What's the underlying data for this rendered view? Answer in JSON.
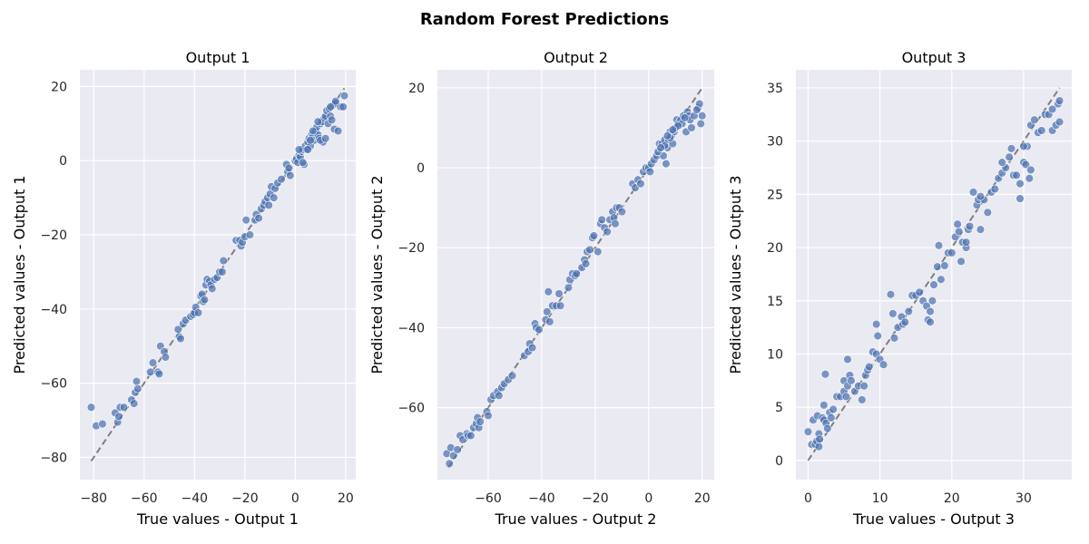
{
  "figure_title": "Random Forest Predictions",
  "colors": {
    "panel_bg": "#eaeaf2",
    "grid": "#ffffff",
    "point": "#4c72b0",
    "identity_line": "#7f7f7f"
  },
  "chart_data": [
    {
      "type": "scatter",
      "title": "Output 1",
      "xlabel": "True values - Output 1",
      "ylabel": "Predicted values - Output 1",
      "xlim": [
        -85.5,
        24
      ],
      "ylim": [
        -86,
        24.5
      ],
      "xticks": [
        -80,
        -60,
        -40,
        -20,
        0,
        20
      ],
      "yticks": [
        -80,
        -60,
        -40,
        -20,
        0,
        20
      ],
      "xtick_labels": [
        "−80",
        "−60",
        "−40",
        "−20",
        "0",
        "20"
      ],
      "ytick_labels": [
        "−80",
        "−60",
        "−40",
        "−20",
        "0",
        "20"
      ],
      "grid": true,
      "identity_line": {
        "from": -81,
        "to": 19.5,
        "style": "dashed"
      },
      "points": [
        [
          -81,
          -66.5
        ],
        [
          -79,
          -71.5
        ],
        [
          -76.5,
          -71
        ],
        [
          -71.5,
          -68
        ],
        [
          -70.5,
          -70.5
        ],
        [
          -70,
          -69
        ],
        [
          -69.5,
          -66.5
        ],
        [
          -68,
          -66.5
        ],
        [
          -65,
          -64.5
        ],
        [
          -64,
          -65.5
        ],
        [
          -63.5,
          -62.5
        ],
        [
          -62.5,
          -61.5
        ],
        [
          -63,
          -59.5
        ],
        [
          -57.5,
          -57
        ],
        [
          -56.5,
          -54.5
        ],
        [
          -54.5,
          -57
        ],
        [
          -54,
          -57.5
        ],
        [
          -53.5,
          -50
        ],
        [
          -52,
          -51.5
        ],
        [
          -51.5,
          -53
        ],
        [
          -46.5,
          -45.5
        ],
        [
          -46,
          -47.5
        ],
        [
          -45.5,
          -48
        ],
        [
          -44.5,
          -44
        ],
        [
          -43.5,
          -43
        ],
        [
          -41.5,
          -42
        ],
        [
          -40.5,
          -41.5
        ],
        [
          -40,
          -41
        ],
        [
          -39.5,
          -39.5
        ],
        [
          -38.5,
          -41
        ],
        [
          -37.5,
          -36.5
        ],
        [
          -37,
          -36
        ],
        [
          -36.5,
          -38
        ],
        [
          -36,
          -37.5
        ],
        [
          -35.5,
          -33.5
        ],
        [
          -35,
          -32
        ],
        [
          -34,
          -32.5
        ],
        [
          -33.5,
          -33.5
        ],
        [
          -33,
          -34.5
        ],
        [
          -32,
          -32
        ],
        [
          -31,
          -31.5
        ],
        [
          -30,
          -30
        ],
        [
          -29,
          -30
        ],
        [
          -28.5,
          -27
        ],
        [
          -23.5,
          -21.5
        ],
        [
          -22,
          -21.5
        ],
        [
          -21.5,
          -23
        ],
        [
          -21,
          -22
        ],
        [
          -20,
          -20.5
        ],
        [
          -19.5,
          -16
        ],
        [
          -18,
          -20
        ],
        [
          -16,
          -16
        ],
        [
          -15.5,
          -14.5
        ],
        [
          -14.5,
          -15.5
        ],
        [
          -13.5,
          -13
        ],
        [
          -12.5,
          -12
        ],
        [
          -12,
          -11
        ],
        [
          -11,
          -10
        ],
        [
          -10.5,
          -12
        ],
        [
          -10,
          -9
        ],
        [
          -9.5,
          -7
        ],
        [
          -8.5,
          -10
        ],
        [
          -8,
          -7.5
        ],
        [
          -7,
          -6
        ],
        [
          -5.5,
          -5
        ],
        [
          -3.5,
          -1
        ],
        [
          -3,
          -3
        ],
        [
          -2.5,
          -2
        ],
        [
          -2,
          -4
        ],
        [
          0,
          0
        ],
        [
          0.5,
          0.5
        ],
        [
          1,
          -0.5
        ],
        [
          1.5,
          1.5
        ],
        [
          2,
          1
        ],
        [
          2.5,
          2.5
        ],
        [
          3,
          3
        ],
        [
          3.5,
          -1
        ],
        [
          4,
          4
        ],
        [
          4.5,
          3
        ],
        [
          5,
          5
        ],
        [
          5.5,
          6
        ],
        [
          6,
          4
        ],
        [
          6.5,
          7
        ],
        [
          7,
          6.5
        ],
        [
          7.5,
          5.5
        ],
        [
          8,
          8
        ],
        [
          8.5,
          9
        ],
        [
          9,
          7
        ],
        [
          9.5,
          6
        ],
        [
          10,
          10
        ],
        [
          10.5,
          10.5
        ],
        [
          11,
          5
        ],
        [
          11.5,
          11.5
        ],
        [
          12,
          12
        ],
        [
          12.5,
          13.5
        ],
        [
          13,
          10
        ],
        [
          13.5,
          14
        ],
        [
          14,
          12
        ],
        [
          14.5,
          11
        ],
        [
          15,
          15
        ],
        [
          15.5,
          8.5
        ],
        [
          16,
          15.5
        ],
        [
          17,
          8
        ],
        [
          18,
          14.5
        ],
        [
          19,
          14.5
        ],
        [
          19.5,
          17.5
        ],
        [
          5,
          3
        ],
        [
          3,
          -0.5
        ],
        [
          1.5,
          3
        ],
        [
          7,
          8
        ],
        [
          10,
          5.5
        ],
        [
          12,
          6
        ],
        [
          9,
          10.5
        ],
        [
          16,
          16
        ],
        [
          14,
          14.5
        ],
        [
          6,
          5.5
        ]
      ]
    },
    {
      "type": "scatter",
      "title": "Output 2",
      "xlabel": "True values - Output 2",
      "ylabel": "Predicted values - Output 2",
      "xlim": [
        -79,
        24.5
      ],
      "ylim": [
        -78,
        24.5
      ],
      "xticks": [
        -60,
        -40,
        -20,
        0,
        20
      ],
      "yticks": [
        -60,
        -40,
        -20,
        0,
        20
      ],
      "xtick_labels": [
        "−60",
        "−40",
        "−20",
        "0",
        "20"
      ],
      "ytick_labels": [
        "−60",
        "−40",
        "−20",
        "0",
        "20"
      ],
      "grid": true,
      "identity_line": {
        "from": -75,
        "to": 20,
        "style": "dashed"
      },
      "points": [
        [
          -75.5,
          -71.5
        ],
        [
          -74.5,
          -74
        ],
        [
          -74,
          -70
        ],
        [
          -73,
          -72
        ],
        [
          -71.5,
          -70.5
        ],
        [
          -70.5,
          -67
        ],
        [
          -69.5,
          -68
        ],
        [
          -68,
          -66.5
        ],
        [
          -67.5,
          -67
        ],
        [
          -66.5,
          -67
        ],
        [
          -65.5,
          -65
        ],
        [
          -64.5,
          -64
        ],
        [
          -64,
          -62.5
        ],
        [
          -63.5,
          -65
        ],
        [
          -63,
          -63.5
        ],
        [
          -60.5,
          -61
        ],
        [
          -60,
          -62
        ],
        [
          -59,
          -58
        ],
        [
          -58,
          -57
        ],
        [
          -56.5,
          -56
        ],
        [
          -56,
          -57
        ],
        [
          -55,
          -55
        ],
        [
          -54,
          -54
        ],
        [
          -52.5,
          -53
        ],
        [
          -51,
          -52
        ],
        [
          -46.5,
          -47
        ],
        [
          -45,
          -46
        ],
        [
          -44.5,
          -44
        ],
        [
          -43.5,
          -45
        ],
        [
          -42.5,
          -39
        ],
        [
          -42,
          -40
        ],
        [
          -41,
          -40.5
        ],
        [
          -38.5,
          -38
        ],
        [
          -38,
          -36
        ],
        [
          -37.5,
          -31
        ],
        [
          -37,
          -38.5
        ],
        [
          -36,
          -34.5
        ],
        [
          -34.5,
          -34.5
        ],
        [
          -33.5,
          -31.5
        ],
        [
          -33,
          -34.5
        ],
        [
          -30,
          -30
        ],
        [
          -29.5,
          -28
        ],
        [
          -28.5,
          -26.5
        ],
        [
          -27.5,
          -27
        ],
        [
          -27,
          -26.5
        ],
        [
          -25,
          -25
        ],
        [
          -24,
          -23
        ],
        [
          -23.5,
          -24
        ],
        [
          -23,
          -21
        ],
        [
          -22,
          -20.5
        ],
        [
          -21,
          -17.5
        ],
        [
          -20.5,
          -17
        ],
        [
          -19,
          -21
        ],
        [
          -18,
          -14
        ],
        [
          -17.5,
          -13
        ],
        [
          -16.5,
          -15
        ],
        [
          -15.5,
          -16
        ],
        [
          -14.5,
          -13
        ],
        [
          -13.5,
          -11
        ],
        [
          -13,
          -12.5
        ],
        [
          -12.5,
          -14
        ],
        [
          -12,
          -10
        ],
        [
          -11,
          -10
        ],
        [
          -10,
          -11
        ],
        [
          -6,
          -4
        ],
        [
          -5,
          -5
        ],
        [
          -4,
          -3
        ],
        [
          -3,
          -4
        ],
        [
          -2,
          -1
        ],
        [
          -1,
          0
        ],
        [
          0,
          0
        ],
        [
          0.5,
          -1
        ],
        [
          1,
          1
        ],
        [
          2,
          2
        ],
        [
          3,
          3
        ],
        [
          4,
          6
        ],
        [
          5,
          6
        ],
        [
          5.5,
          3
        ],
        [
          6,
          7
        ],
        [
          6.5,
          1
        ],
        [
          7,
          5
        ],
        [
          7.5,
          7
        ],
        [
          8,
          9
        ],
        [
          8.5,
          8
        ],
        [
          9,
          6
        ],
        [
          9.5,
          9
        ],
        [
          10,
          10
        ],
        [
          10.5,
          12
        ],
        [
          11,
          11
        ],
        [
          12,
          12
        ],
        [
          12.5,
          11
        ],
        [
          13,
          13
        ],
        [
          14,
          9
        ],
        [
          14.5,
          14
        ],
        [
          15,
          13
        ],
        [
          15.5,
          12
        ],
        [
          16,
          10
        ],
        [
          17,
          13
        ],
        [
          18.5,
          15
        ],
        [
          19,
          16
        ],
        [
          19.5,
          11
        ],
        [
          20,
          13
        ],
        [
          3.5,
          4
        ],
        [
          6,
          5.5
        ],
        [
          8,
          7.5
        ],
        [
          11,
          10.5
        ],
        [
          13.5,
          12.5
        ],
        [
          18,
          14.5
        ],
        [
          7,
          8
        ],
        [
          9,
          9.5
        ],
        [
          4.5,
          5
        ]
      ]
    },
    {
      "type": "scatter",
      "title": "Output 3",
      "xlabel": "True values - Output 3",
      "ylabel": "Predicted values - Output 3",
      "xlim": [
        -1.7,
        36.7
      ],
      "ylim": [
        -1.8,
        36.7
      ],
      "xticks": [
        0,
        10,
        20,
        30
      ],
      "yticks": [
        0,
        5,
        10,
        15,
        20,
        25,
        30,
        35
      ],
      "xtick_labels": [
        "0",
        "10",
        "20",
        "30"
      ],
      "ytick_labels": [
        "0",
        "5",
        "10",
        "15",
        "20",
        "25",
        "30",
        "35"
      ],
      "grid": true,
      "identity_line": {
        "from": 0,
        "to": 35,
        "style": "dashed"
      },
      "points": [
        [
          0,
          2.7
        ],
        [
          0.5,
          1.5
        ],
        [
          0.7,
          3.8
        ],
        [
          1,
          1.5
        ],
        [
          1.2,
          1.8
        ],
        [
          1.3,
          4.2
        ],
        [
          1.5,
          2.5
        ],
        [
          1.5,
          1.3
        ],
        [
          1.6,
          2
        ],
        [
          2,
          4
        ],
        [
          2.2,
          3.8
        ],
        [
          2.2,
          5.2
        ],
        [
          2.4,
          8.1
        ],
        [
          2.5,
          3.5
        ],
        [
          2.7,
          3
        ],
        [
          3,
          4.5
        ],
        [
          3.2,
          4
        ],
        [
          3.5,
          4.8
        ],
        [
          4,
          6
        ],
        [
          4.5,
          6
        ],
        [
          5,
          6.5
        ],
        [
          5,
          7.5
        ],
        [
          5.3,
          6
        ],
        [
          5.5,
          9.5
        ],
        [
          5.5,
          7
        ],
        [
          5.8,
          8
        ],
        [
          6,
          7.5
        ],
        [
          6.5,
          6.5
        ],
        [
          7,
          7
        ],
        [
          7.5,
          5.7
        ],
        [
          7.8,
          7
        ],
        [
          8,
          8
        ],
        [
          8.3,
          8.5
        ],
        [
          8.5,
          8.8
        ],
        [
          9,
          10.2
        ],
        [
          9.5,
          12.8
        ],
        [
          9.5,
          10
        ],
        [
          9.7,
          11.7
        ],
        [
          10,
          9.5
        ],
        [
          10.5,
          9
        ],
        [
          11.5,
          15.6
        ],
        [
          11.8,
          13.8
        ],
        [
          12,
          11.5
        ],
        [
          12.5,
          12.5
        ],
        [
          13,
          13.5
        ],
        [
          13.2,
          12.8
        ],
        [
          13.5,
          13
        ],
        [
          14,
          14
        ],
        [
          14.5,
          15.5
        ],
        [
          15,
          15.5
        ],
        [
          15.5,
          15.8
        ],
        [
          16,
          15
        ],
        [
          16.5,
          14.5
        ],
        [
          16.7,
          13.2
        ],
        [
          17,
          14
        ],
        [
          17.3,
          15
        ],
        [
          17.5,
          16.5
        ],
        [
          18,
          18.2
        ],
        [
          18.2,
          20.2
        ],
        [
          18.5,
          17
        ],
        [
          19,
          18.3
        ],
        [
          19.5,
          19.5
        ],
        [
          20,
          19.5
        ],
        [
          20.5,
          21
        ],
        [
          21,
          21.5
        ],
        [
          21.3,
          18.7
        ],
        [
          21.5,
          20.5
        ],
        [
          22,
          20
        ],
        [
          22.3,
          21.7
        ],
        [
          22.5,
          22
        ],
        [
          23,
          25.2
        ],
        [
          23.5,
          24
        ],
        [
          23.7,
          24.5
        ],
        [
          24,
          21.7
        ],
        [
          24.5,
          24.5
        ],
        [
          25,
          23.3
        ],
        [
          25.5,
          25.2
        ],
        [
          26,
          25.5
        ],
        [
          26.5,
          26.5
        ],
        [
          27,
          27
        ],
        [
          27.5,
          27.5
        ],
        [
          28,
          28.5
        ],
        [
          28.3,
          29.3
        ],
        [
          28.6,
          26.8
        ],
        [
          29,
          26.8
        ],
        [
          29.5,
          24.6
        ],
        [
          30,
          28
        ],
        [
          30.3,
          27.8
        ],
        [
          30.5,
          29.5
        ],
        [
          30.8,
          26.5
        ],
        [
          31,
          31.5
        ],
        [
          31.5,
          32
        ],
        [
          32,
          30.8
        ],
        [
          32.5,
          31
        ],
        [
          33,
          32.5
        ],
        [
          33.5,
          32.5
        ],
        [
          34,
          33
        ],
        [
          34,
          31
        ],
        [
          34.5,
          31.5
        ],
        [
          34.8,
          33.5
        ],
        [
          35,
          33.8
        ],
        [
          35,
          31.8
        ],
        [
          29.5,
          26
        ],
        [
          27,
          28
        ],
        [
          30,
          29.5
        ],
        [
          31,
          27.3
        ],
        [
          24,
          24.8
        ],
        [
          17,
          13
        ],
        [
          20.8,
          22.2
        ],
        [
          22,
          20.5
        ]
      ]
    }
  ]
}
